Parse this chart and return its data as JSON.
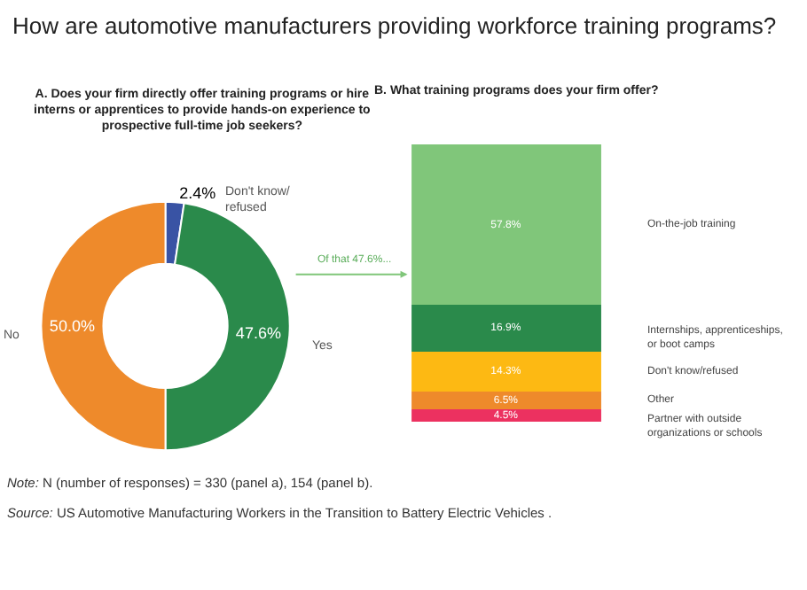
{
  "chart_data": [
    {
      "type": "donut",
      "title": "How are automotive manufacturers providing workforce training programs?",
      "subtitle": "A. Does your firm directly offer training programs or hire interns or apprentices to provide hands-on experience to prospective full-time job seekers?",
      "categories": [
        "Don't know/ refused",
        "Yes",
        "No"
      ],
      "values": [
        2.4,
        47.6,
        50.0
      ],
      "colors": [
        "#3953a4",
        "#2a8a4b",
        "#ee8a2b"
      ],
      "value_labels": [
        "2.4%",
        "47.6%",
        "50.0%"
      ],
      "annotations": [
        "Of that 47.6%...",
        "Note: N (number of responses) = 330 (panel a), 154 (panel b).",
        "Source: US Automotive Manufacturing Workers in the Transition to Battery Electric Vehicles ."
      ]
    },
    {
      "type": "bar",
      "stacked": true,
      "title": "B. What training programs does your firm offer?",
      "categories": [
        null
      ],
      "series": [
        {
          "name": "Partner with outside organizations or schools",
          "color": "#ec3160",
          "values": [
            4.5
          ],
          "value_labels": [
            "4.5%"
          ]
        },
        {
          "name": "Other",
          "color": "#ee8a2b",
          "values": [
            6.5
          ],
          "value_labels": [
            "6.5%"
          ]
        },
        {
          "name": "Don't know/refused",
          "color": "#fdb913",
          "values": [
            14.3
          ],
          "value_labels": [
            "14.3%"
          ]
        },
        {
          "name": "Internships, apprenticeships, or boot camps",
          "color": "#2a8a4b",
          "values": [
            16.9
          ],
          "value_labels": [
            "16.9%"
          ]
        },
        {
          "name": "On-the-job training",
          "color": "#80c67a",
          "values": [
            57.8
          ],
          "value_labels": [
            "57.8%"
          ]
        }
      ]
    }
  ]
}
